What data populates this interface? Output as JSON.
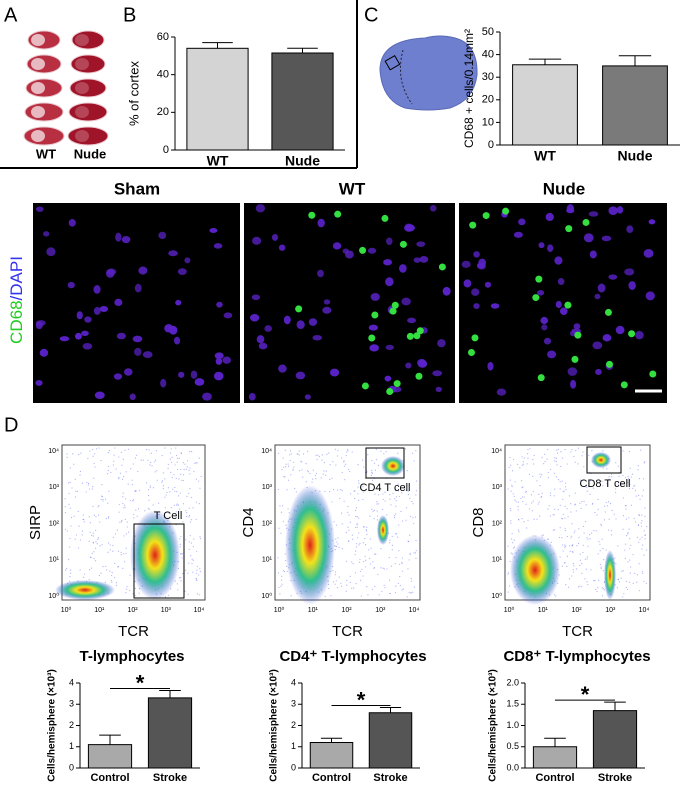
{
  "panel_labels": [
    "A",
    "B",
    "C",
    "D"
  ],
  "panel_a": {
    "groups": [
      "WT",
      "Nude"
    ]
  },
  "micrographs": {
    "stain": [
      "CD68",
      "/DAPI"
    ],
    "conditions": [
      "Sham",
      "WT",
      "Nude"
    ]
  },
  "flow_ticks": [
    "10⁰",
    "10¹",
    "10²",
    "10³",
    "10⁴"
  ],
  "flow_plots": [
    {
      "y_label": "SIRP",
      "x_label": "TCR",
      "gate": "T Cell"
    },
    {
      "y_label": "CD4",
      "x_label": "TCR",
      "gate": "CD4 T cell"
    },
    {
      "y_label": "CD8",
      "x_label": "TCR",
      "gate": "CD8 T cell"
    }
  ],
  "chart_data": [
    {
      "type": "bar",
      "ylabel": "% of cortex",
      "categories": [
        "WT",
        "Nude"
      ],
      "values": [
        54,
        51.5
      ],
      "errors": [
        3,
        2.5
      ],
      "colors": [
        "#d4d4d4",
        "#575757"
      ],
      "ylim": [
        0,
        60
      ],
      "yticks": [
        0,
        20,
        40,
        60
      ]
    },
    {
      "type": "bar",
      "ylabel": "CD68 + cells/0.14mm²",
      "categories": [
        "WT",
        "Nude"
      ],
      "values": [
        35.5,
        35
      ],
      "errors": [
        2.5,
        4.5
      ],
      "colors": [
        "#d4d4d4",
        "#7a7a7a"
      ],
      "ylim": [
        0,
        50
      ],
      "yticks": [
        0,
        10,
        20,
        30,
        40,
        50
      ]
    },
    {
      "type": "bar",
      "title": "T-lymphocytes",
      "ylabel": "Cells/hemisphere (×10³)",
      "categories": [
        "Control",
        "Stroke"
      ],
      "values": [
        1.1,
        3.3
      ],
      "errors": [
        0.45,
        0.35
      ],
      "colors": [
        "#a9a9a9",
        "#555555"
      ],
      "ylim": [
        0,
        4
      ],
      "yticks": [
        0,
        1,
        2,
        3,
        4
      ],
      "annotation": "*"
    },
    {
      "type": "bar",
      "title": "CD4⁺ T-lymphocytes",
      "ylabel": "Cells/hemisphere (×10³)",
      "categories": [
        "Control",
        "Stroke"
      ],
      "values": [
        1.2,
        2.6
      ],
      "errors": [
        0.2,
        0.25
      ],
      "colors": [
        "#a9a9a9",
        "#555555"
      ],
      "ylim": [
        0,
        4
      ],
      "yticks": [
        0,
        1,
        2,
        3,
        4
      ],
      "annotation": "*"
    },
    {
      "type": "bar",
      "title": "CD8⁺ T-lymphocytes",
      "ylabel": "Cells/hemisphere (×10³)",
      "categories": [
        "Control",
        "Stroke"
      ],
      "values": [
        0.5,
        1.35
      ],
      "errors": [
        0.2,
        0.2
      ],
      "colors": [
        "#a9a9a9",
        "#555555"
      ],
      "ylim": [
        0,
        2
      ],
      "yticks": [
        {
          "value": 0,
          "label": "0.0"
        },
        0.5,
        {
          "value": 1,
          "label": "1.0"
        },
        1.5,
        {
          "value": 2,
          "label": "2.0"
        }
      ],
      "annotation": "*"
    }
  ]
}
